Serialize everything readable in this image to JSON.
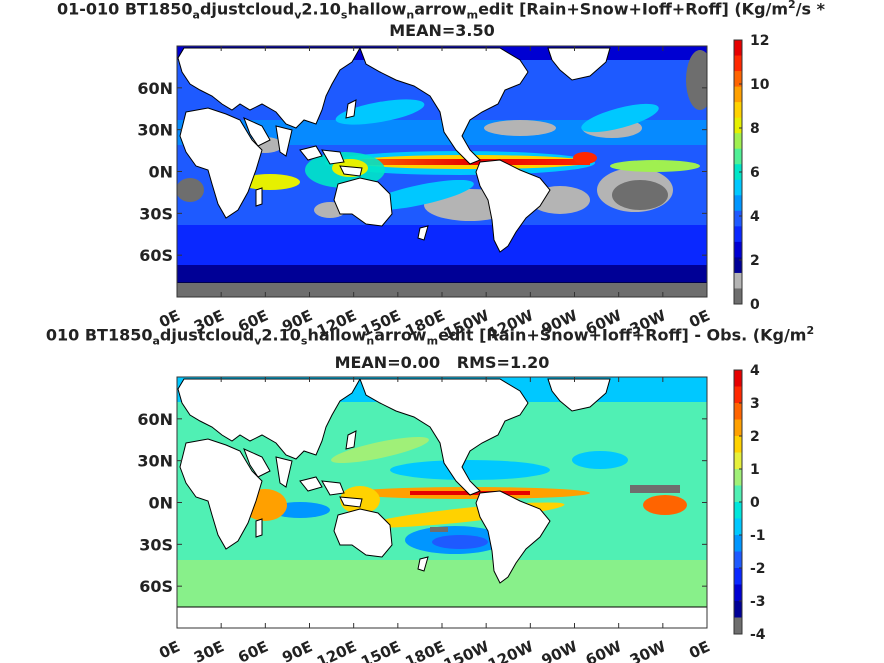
{
  "chart_data": [
    {
      "type": "heatmap",
      "title_main": "01-010 BT1850",
      "title_parts": [
        "adjustcloud",
        "v2.10",
        "shallow",
        "narrow",
        "medit",
        "[Rain+Snow+Ioff+Roff] (Kg/m",
        "2",
        "/s *"
      ],
      "title_text": "01-010 BT1850_adjustcloud_v2.10_shallow_narrow_medit [Rain+Snow+Ioff+Roff] (Kg/m^2/s *",
      "subtitle": "MEAN=3.50",
      "ytick_labels": [
        "60N",
        "30N",
        "0N",
        "30S",
        "60S"
      ],
      "xtick_labels": [
        "0E",
        "30E",
        "60E",
        "90E",
        "120E",
        "150E",
        "180E",
        "150W",
        "120W",
        "90W",
        "60W",
        "30W",
        "0E"
      ],
      "colorbar": {
        "ticks": [
          "0",
          "2",
          "4",
          "6",
          "8",
          "10",
          "12"
        ],
        "range": [
          0,
          12
        ],
        "colors": [
          "#6e6e6e",
          "#b4b4b4",
          "#000096",
          "#0000d2",
          "#0a28ff",
          "#1e5aff",
          "#0096ff",
          "#00c8ff",
          "#00e6c8",
          "#50f096",
          "#a0f050",
          "#e6f000",
          "#ffd200",
          "#ffa000",
          "#ff6400",
          "#ff2800",
          "#e60000"
        ]
      }
    },
    {
      "type": "heatmap",
      "title_main": "010 BT1850",
      "title_text": "010 BT1850_adjustcloud_v2.10_shallow_narrow_medit [Rain+Snow+Ioff+Roff] - Obs. (Kg/m^2",
      "subtitle_mean": "MEAN=0.00",
      "subtitle_rms": "RMS=1.20",
      "ytick_labels": [
        "60N",
        "30N",
        "0N",
        "30S",
        "60S"
      ],
      "xtick_labels": [
        "0E",
        "30E",
        "60E",
        "90E",
        "120E",
        "150E",
        "180E",
        "150W",
        "120W",
        "90W",
        "60W",
        "30W",
        "0E"
      ],
      "colorbar": {
        "ticks": [
          "-4",
          "-3",
          "-2",
          "-1",
          "0",
          "1",
          "2",
          "3",
          "4"
        ],
        "range": [
          -4,
          4
        ],
        "colors": [
          "#6e6e6e",
          "#000096",
          "#0000d2",
          "#0a28ff",
          "#1e5aff",
          "#0096ff",
          "#00c8ff",
          "#00e6dc",
          "#50f0b4",
          "#a0f078",
          "#e6f03c",
          "#ffd200",
          "#ffa000",
          "#ff6400",
          "#ff2800",
          "#e60000"
        ]
      }
    }
  ],
  "text": {
    "t1a": "01-010 BT1850",
    "t1b": "djustcloud",
    "t1c": "2.10",
    "t1d": "hallow",
    "t1e": "arrow",
    "t1f": "edit [Rain+Snow+Ioff+Roff] (Kg/m",
    "t1g": "/s *",
    "s_a": "a",
    "s_v": "v",
    "s_s": "s",
    "s_n": "n",
    "s_m": "m",
    "s_2": "2",
    "sub1": "MEAN=3.50",
    "t2a": "010 BT1850",
    "t2b": "djustcloud",
    "t2c": "2.10",
    "t2d": "hallow",
    "t2e": "arrow",
    "t2f": "edit [Rain+Snow+Ioff+Roff] - Obs. (Kg/m",
    "sub2": "MEAN=0.00   RMS=1.20"
  }
}
